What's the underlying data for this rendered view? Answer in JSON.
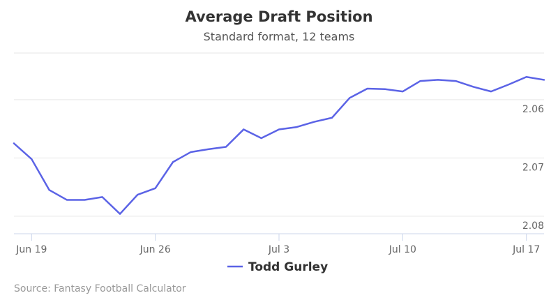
{
  "chart_data": {
    "type": "line",
    "title": "Average Draft Position",
    "subtitle": "Standard format, 12 teams",
    "credit": "Source: Fantasy Football Calculator",
    "legend": "bottom-center",
    "grid": true,
    "y_reversed": true,
    "ylim": [
      2.052,
      2.083
    ],
    "yticks": [
      "2.06",
      "2.07",
      "2.08"
    ],
    "xticks": [
      "Jun 19",
      "Jun 26",
      "Jul 3",
      "Jul 10",
      "Jul 17"
    ],
    "series": [
      {
        "name": "Todd Gurley",
        "color": "#5b63e6",
        "x": [
          "Jun 18",
          "Jun 19",
          "Jun 20",
          "Jun 21",
          "Jun 22",
          "Jun 23",
          "Jun 24",
          "Jun 25",
          "Jun 26",
          "Jun 27",
          "Jun 28",
          "Jun 29",
          "Jun 30",
          "Jul 1",
          "Jul 2",
          "Jul 3",
          "Jul 4",
          "Jul 5",
          "Jul 6",
          "Jul 7",
          "Jul 8",
          "Jul 9",
          "Jul 10",
          "Jul 11",
          "Jul 12",
          "Jul 13",
          "Jul 14",
          "Jul 15",
          "Jul 16",
          "Jul 17",
          "Jul 18"
        ],
        "values": [
          2.0675,
          2.0702,
          2.0755,
          2.0772,
          2.0772,
          2.0767,
          2.0796,
          2.0763,
          2.0752,
          2.0707,
          2.069,
          2.0685,
          2.0681,
          2.0651,
          2.0666,
          2.0651,
          2.0647,
          2.0638,
          2.0631,
          2.0597,
          2.0581,
          2.0582,
          2.0586,
          2.0568,
          2.0566,
          2.0568,
          2.0578,
          2.0586,
          2.0574,
          2.0561,
          2.0566
        ]
      }
    ]
  }
}
